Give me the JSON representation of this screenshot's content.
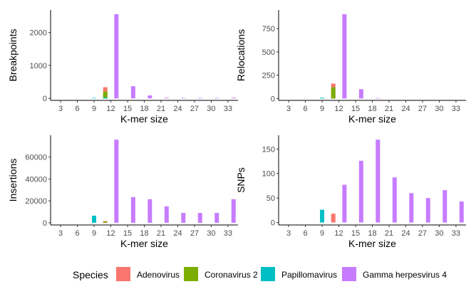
{
  "colors": {
    "Adenovirus": "#F8766D",
    "Coronavirus 2": "#7CAE00",
    "Papillomavirus": "#00BFC4",
    "Gamma herpesvirus 4": "#C77CFF"
  },
  "legend": {
    "title": "Species",
    "items": [
      "Adenovirus",
      "Coronavirus 2",
      "Papillomavirus",
      "Gamma herpesvirus 4"
    ]
  },
  "chart_data": [
    {
      "type": "bar",
      "ylabel": "Breakpoints",
      "xlabel": "K-mer size",
      "x_ticks": [
        3,
        6,
        9,
        12,
        15,
        18,
        21,
        24,
        27,
        30,
        33
      ],
      "xlim": [
        1.2,
        34.8
      ],
      "ylim": [
        -60,
        2680
      ],
      "y_ticks": [
        0,
        1000,
        2000
      ],
      "series": [
        {
          "name": "Adenovirus",
          "x": [
            11
          ],
          "values": [
            340
          ]
        },
        {
          "name": "Coronavirus 2",
          "x": [
            11
          ],
          "values": [
            210
          ]
        },
        {
          "name": "Papillomavirus",
          "x": [
            9,
            11
          ],
          "values": [
            15,
            30
          ]
        },
        {
          "name": "Gamma herpesvirus 4",
          "x": [
            13,
            16,
            19,
            22,
            25,
            28,
            31,
            34
          ],
          "values": [
            2550,
            370,
            90,
            20,
            15,
            15,
            15,
            20
          ]
        }
      ]
    },
    {
      "type": "bar",
      "ylabel": "Relocations",
      "xlabel": "K-mer size",
      "x_ticks": [
        3,
        6,
        9,
        12,
        15,
        18,
        21,
        24,
        27,
        30,
        33
      ],
      "xlim": [
        1.2,
        34.8
      ],
      "ylim": [
        -20,
        950
      ],
      "y_ticks": [
        0,
        250,
        500,
        750
      ],
      "series": [
        {
          "name": "Adenovirus",
          "x": [
            11
          ],
          "values": [
            160
          ]
        },
        {
          "name": "Coronavirus 2",
          "x": [
            11
          ],
          "values": [
            120
          ]
        },
        {
          "name": "Papillomavirus",
          "x": [
            9
          ],
          "values": [
            8
          ]
        },
        {
          "name": "Gamma herpesvirus 4",
          "x": [
            13,
            16,
            19
          ],
          "values": [
            905,
            100,
            5
          ]
        }
      ]
    },
    {
      "type": "bar",
      "ylabel": "Insertions",
      "xlabel": "K-mer size",
      "x_ticks": [
        3,
        6,
        9,
        12,
        15,
        18,
        21,
        24,
        27,
        30,
        33
      ],
      "xlim": [
        1.2,
        34.8
      ],
      "ylim": [
        -2000,
        80000
      ],
      "y_ticks": [
        0,
        20000,
        40000,
        60000
      ],
      "series": [
        {
          "name": "Adenovirus",
          "x": [
            11
          ],
          "values": [
            1500
          ]
        },
        {
          "name": "Coronavirus 2",
          "x": [
            11
          ],
          "values": [
            1000
          ]
        },
        {
          "name": "Papillomavirus",
          "x": [
            9
          ],
          "values": [
            6500
          ]
        },
        {
          "name": "Gamma herpesvirus 4",
          "x": [
            13,
            16,
            19,
            22,
            25,
            28,
            31,
            34
          ],
          "values": [
            76000,
            23500,
            21500,
            15000,
            9000,
            9000,
            9000,
            21500
          ]
        }
      ]
    },
    {
      "type": "bar",
      "ylabel": "SNPs",
      "xlabel": "K-mer size",
      "x_ticks": [
        3,
        6,
        9,
        12,
        15,
        18,
        21,
        24,
        27,
        30,
        33
      ],
      "xlim": [
        1.2,
        34.8
      ],
      "ylim": [
        -5,
        178
      ],
      "y_ticks": [
        0,
        50,
        100,
        150
      ],
      "series": [
        {
          "name": "Adenovirus",
          "x": [
            11
          ],
          "values": [
            18
          ]
        },
        {
          "name": "Papillomavirus",
          "x": [
            9
          ],
          "values": [
            26
          ]
        },
        {
          "name": "Gamma herpesvirus 4",
          "x": [
            13,
            16,
            19,
            22,
            25,
            28,
            31,
            34
          ],
          "values": [
            77,
            126,
            169,
            92,
            60,
            50,
            66,
            43
          ]
        }
      ]
    }
  ]
}
